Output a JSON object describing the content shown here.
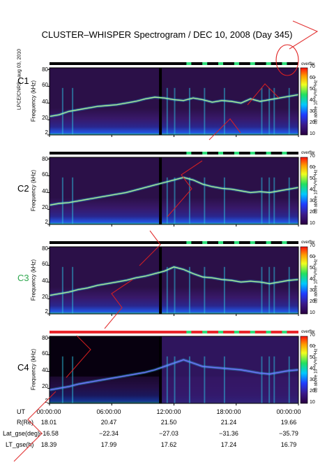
{
  "title": "CLUSTER–WHISPER Spectrogram / DEC 10, 2008 (Day 345)",
  "side_credit": "LPCE/CNRS - aug 03, 2010",
  "colors": {
    "status_red": "#e8262b",
    "status_green": "#2fe07a",
    "status_black": "#000000",
    "watermark": "#e02020"
  },
  "chart_data": {
    "type": "heatmap",
    "xlabel": "UT",
    "ylabel": "Frequency (kHz)",
    "y_ticks": [
      "2",
      "20",
      "40",
      "60",
      "80"
    ],
    "ylim": [
      2,
      82
    ],
    "x_ticks": [
      "00:00:00",
      "06:00:00",
      "12:00:00",
      "18:00:00",
      "00:00:00"
    ],
    "colorbar": {
      "label": "dB above 10⁻⁸V²m⁻²Hz⁻¹",
      "ticks": [
        "10",
        "20",
        "30",
        "40",
        "50",
        "60",
        "70"
      ],
      "range": [
        10,
        70
      ],
      "overlay_word": "overflw"
    },
    "panels": [
      {
        "name": "C1",
        "label_color": "#000000",
        "plasma_line_khz": [
          24,
          26,
          30,
          32,
          34,
          36,
          37,
          38,
          40,
          42,
          45,
          47,
          46,
          44,
          43,
          46,
          44,
          41,
          43,
          42,
          40,
          45,
          42,
          44,
          46,
          48,
          50
        ]
      },
      {
        "name": "C2",
        "label_color": "#000000",
        "plasma_line_khz": [
          25,
          27,
          28,
          30,
          32,
          34,
          36,
          38,
          40,
          43,
          46,
          49,
          52,
          55,
          58,
          55,
          50,
          47,
          45,
          44,
          42,
          40,
          41,
          40,
          42,
          44,
          46
        ]
      },
      {
        "name": "C3",
        "label_color": "#2fa84f",
        "plasma_line_khz": [
          24,
          26,
          28,
          31,
          33,
          36,
          38,
          40,
          42,
          45,
          47,
          50,
          53,
          58,
          55,
          50,
          46,
          45,
          43,
          42,
          40,
          41,
          40,
          38,
          40,
          42,
          43
        ]
      },
      {
        "name": "C4",
        "label_color": "#000000",
        "plasma_line_khz": [
          18,
          20,
          22,
          25,
          27,
          29,
          31,
          33,
          35,
          37,
          39,
          42,
          46,
          50,
          54,
          50,
          46,
          45,
          44,
          43,
          42,
          40,
          38,
          37,
          39,
          41,
          42
        ]
      }
    ],
    "ephemeris": {
      "rows": [
        {
          "label": "UT",
          "values": [
            "00:00:00",
            "06:00:00",
            "12:00:00",
            "18:00:00",
            "00:00:00"
          ]
        },
        {
          "label": "R(Re)",
          "values": [
            "18.01",
            "20.47",
            "21.50",
            "21.24",
            "19.66"
          ]
        },
        {
          "label": "Lat_gse(deg)",
          "values": [
            "−16.58",
            "−22.34",
            "−27.03",
            "−31.36",
            "−35.79"
          ]
        },
        {
          "label": "LT_gse(h)",
          "values": [
            "18.39",
            "17.99",
            "17.62",
            "17.24",
            "16.79"
          ]
        }
      ]
    }
  }
}
